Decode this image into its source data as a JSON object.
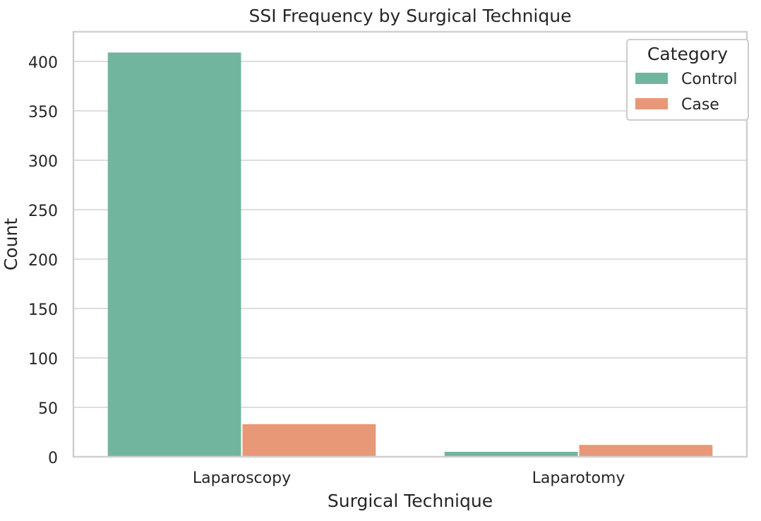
{
  "chart_data": {
    "type": "bar",
    "title": "SSI Frequency by Surgical Technique",
    "xlabel": "Surgical Technique",
    "ylabel": "Count",
    "categories": [
      "Laparoscopy",
      "Laparotomy"
    ],
    "series": [
      {
        "name": "Control",
        "values": [
          409,
          5
        ],
        "color": "#72b59f"
      },
      {
        "name": "Case",
        "values": [
          33,
          12
        ],
        "color": "#e89877"
      }
    ],
    "ylim": [
      0,
      430
    ],
    "yticks": [
      0,
      50,
      100,
      150,
      200,
      250,
      300,
      350,
      400
    ],
    "grid": true,
    "legend": {
      "title": "Category",
      "placement": "top-right"
    }
  }
}
